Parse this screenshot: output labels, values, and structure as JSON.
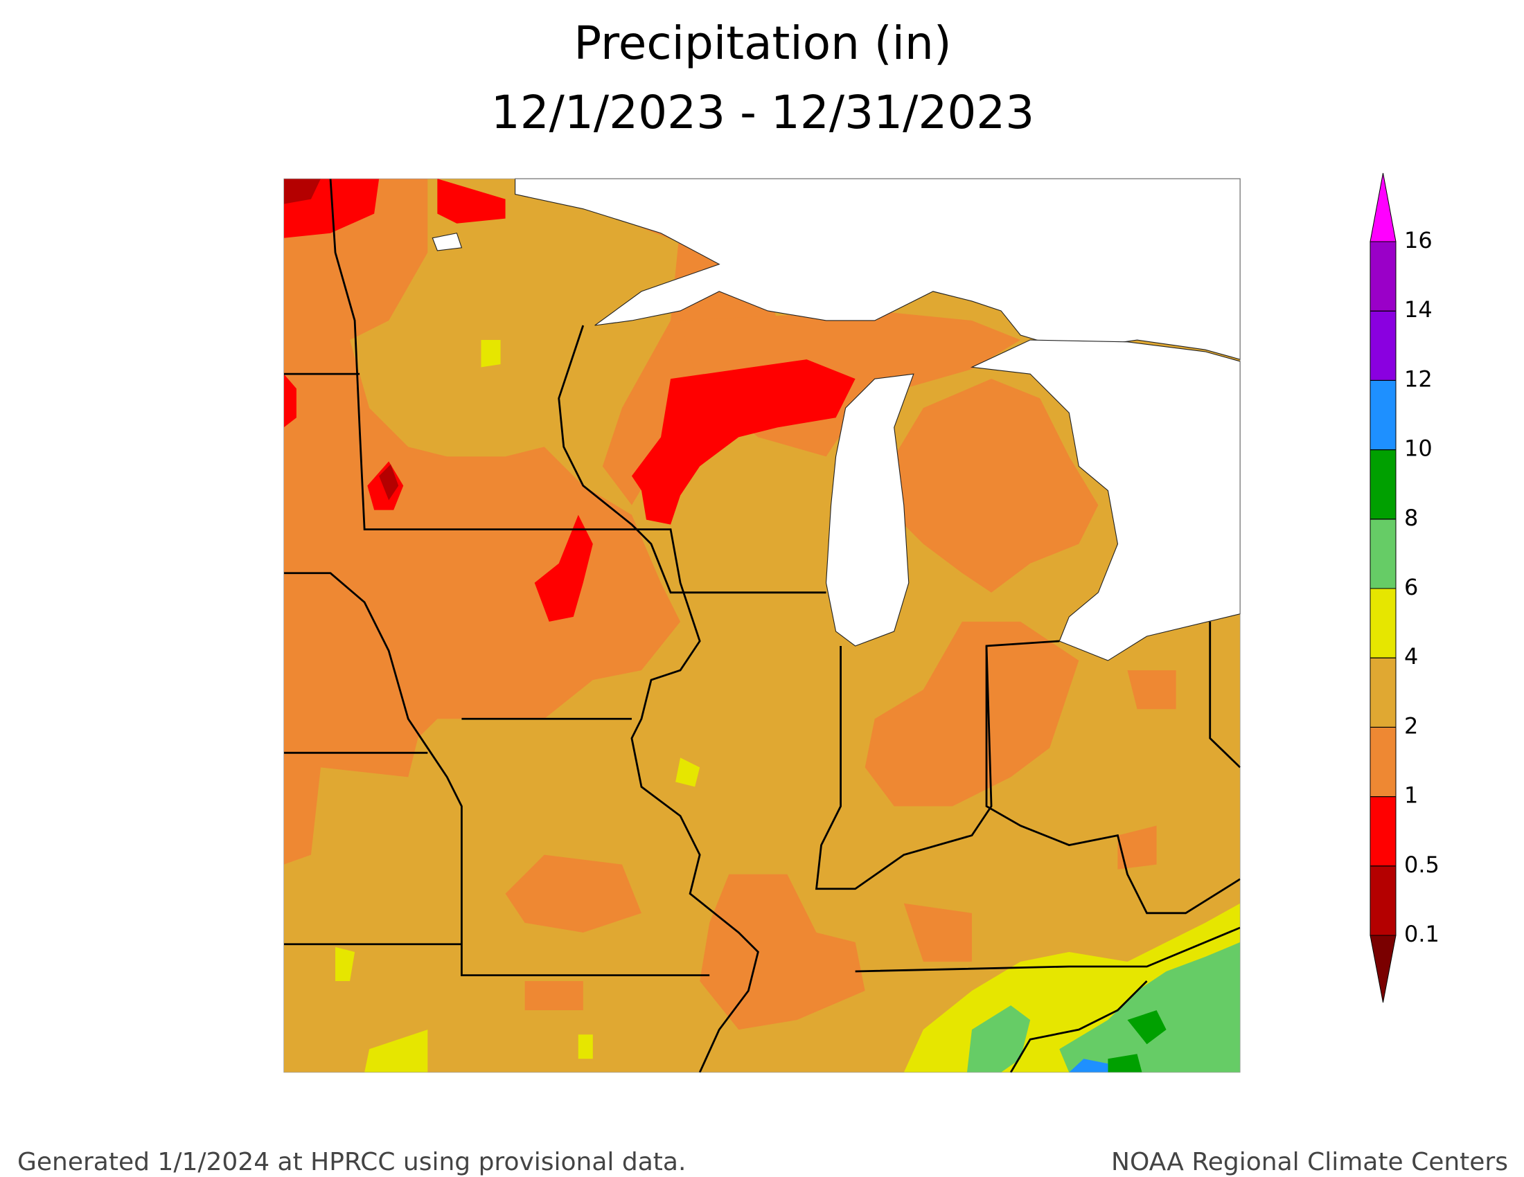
{
  "title": "Precipitation (in)",
  "subtitle": "12/1/2023 - 12/31/2023",
  "colorbar": {
    "levels": [
      0.1,
      0.5,
      1,
      2,
      4,
      6,
      8,
      10,
      12,
      14,
      16
    ],
    "colors": [
      "#7a0000",
      "#b40000",
      "#ff0000",
      "#ee8833",
      "#e0a832",
      "#e6e600",
      "#66cc66",
      "#00a000",
      "#1e90ff",
      "#8a00e0",
      "#9a00c8",
      "#ff00ff"
    ]
  },
  "footer": {
    "left": "Generated 1/1/2024 at HPRCC using provisional data.",
    "right": "NOAA Regional Climate Centers"
  }
}
